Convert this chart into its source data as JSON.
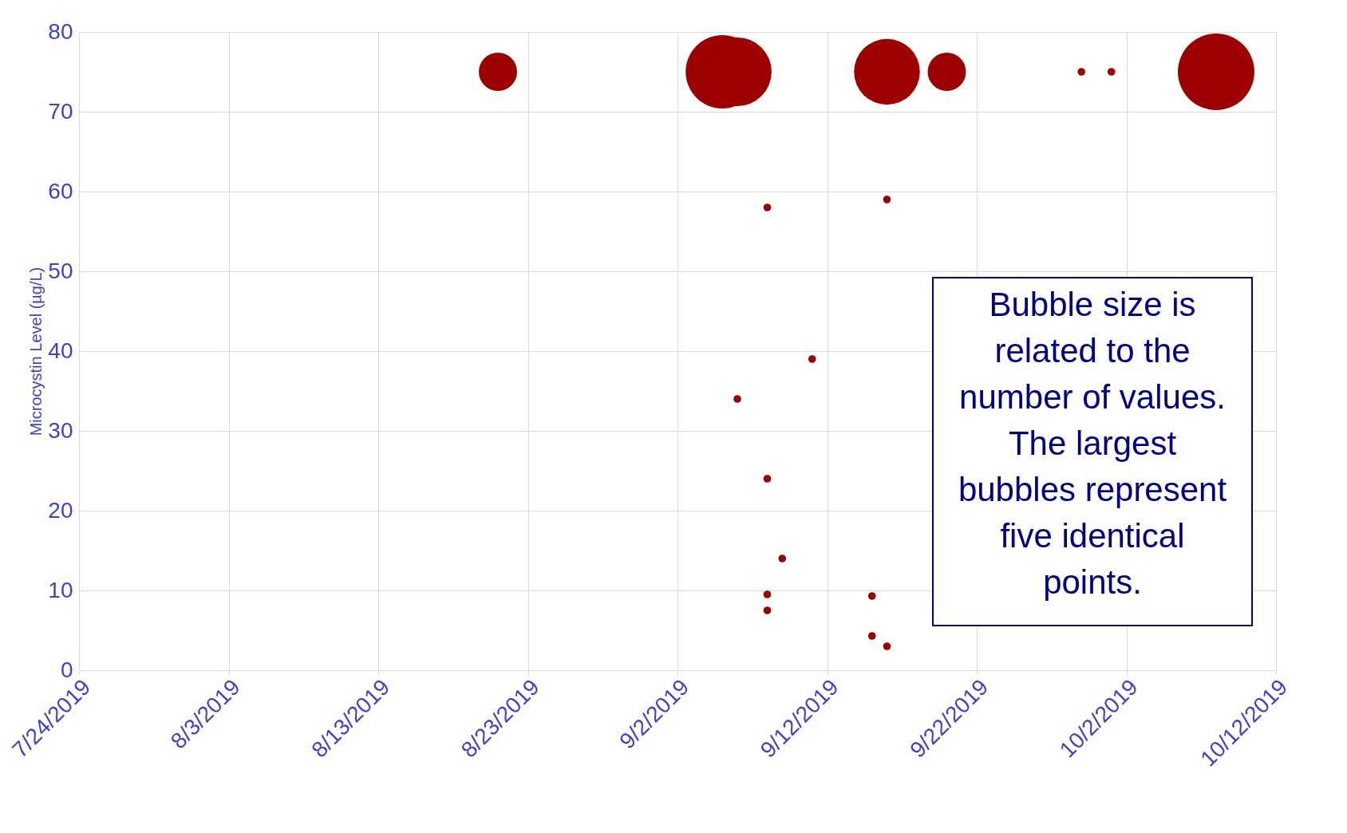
{
  "chart_data": {
    "type": "bubble",
    "ylabel": "Microcystin Level (µg/L)",
    "x": [
      "2019-08-21",
      "2019-09-05",
      "2019-09-06",
      "2019-09-16",
      "2019-09-20",
      "2019-09-29",
      "2019-10-01",
      "2019-10-08",
      "2019-09-08",
      "2019-09-16",
      "2019-09-11",
      "2019-09-06",
      "2019-09-08",
      "2019-09-09",
      "2019-09-08",
      "2019-09-08",
      "2019-09-15",
      "2019-09-15",
      "2019-09-16"
    ],
    "series": [
      {
        "color": "#9e0000",
        "values": [
          75,
          75,
          75,
          75,
          75,
          75,
          75,
          75,
          58,
          59,
          39,
          34,
          24,
          14,
          9.5,
          7.5,
          9.3,
          4.3,
          3.0
        ],
        "sizes": [
          0.25,
          0.92,
          0.8,
          0.74,
          0.25,
          0.01,
          0.01,
          1,
          0.01,
          0.01,
          0.01,
          0.01,
          0.01,
          0.01,
          0.01,
          0.01,
          0.01,
          0.01,
          0.01
        ]
      }
    ],
    "xlim": [
      "2019-07-24",
      "2019-10-12"
    ],
    "xticks": [
      {
        "value": "2019-07-24",
        "label": "7/24/2019"
      },
      {
        "value": "2019-08-03",
        "label": "8/3/2019"
      },
      {
        "value": "2019-08-13",
        "label": "8/13/2019"
      },
      {
        "value": "2019-08-23",
        "label": "8/23/2019"
      },
      {
        "value": "2019-09-02",
        "label": "9/2/2019"
      },
      {
        "value": "2019-09-12",
        "label": "9/12/2019"
      },
      {
        "value": "2019-09-22",
        "label": "9/22/2019"
      },
      {
        "value": "2019-10-02",
        "label": "10/2/2019"
      },
      {
        "value": "2019-10-12",
        "label": "10/12/2019"
      }
    ],
    "ylim": [
      0,
      80
    ],
    "yticks": [
      0,
      10,
      20,
      30,
      40,
      50,
      60,
      70,
      80
    ],
    "grid": true,
    "legend": false,
    "annotations": [
      "Bubble size is related to the number of values. The largest bubbles represent five identical points."
    ]
  }
}
